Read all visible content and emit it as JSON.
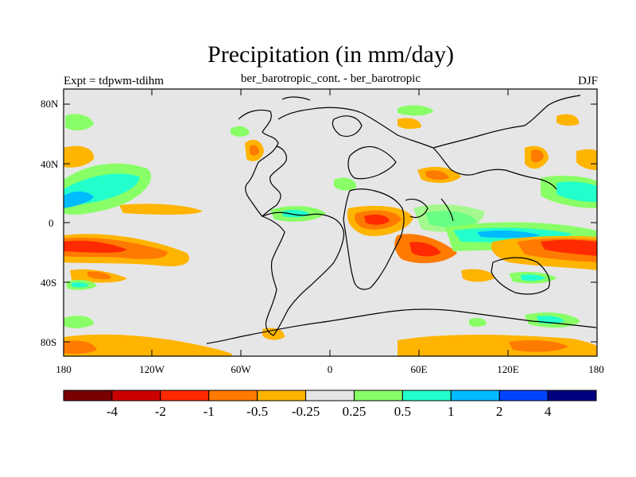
{
  "title": "Precipitation (in mm/day)",
  "subtitle": "ber_barotropic_cont. - ber_barotropic",
  "left_label": "Expt = tdpwm-tdihm",
  "right_label": "DJF",
  "lat_labels": [
    "80N",
    "40N",
    "0",
    "40S",
    "80S"
  ],
  "lon_labels": [
    "180",
    "120W",
    "60W",
    "0",
    "60E",
    "120E",
    "180"
  ],
  "colorbar": {
    "colors": [
      "#7a0000",
      "#cc0000",
      "#ff2a00",
      "#ff7a00",
      "#ffb400",
      "#e6e6e6",
      "#88ff66",
      "#22ffcc",
      "#00bbff",
      "#0044ff",
      "#000080"
    ],
    "labels": [
      "-4",
      "-2",
      "-1",
      "-0.5",
      "-0.25",
      "0.25",
      "0.5",
      "1",
      "2",
      "4"
    ]
  },
  "map_colors": {
    "background": "#e6e6e6",
    "coast": "#000000"
  }
}
